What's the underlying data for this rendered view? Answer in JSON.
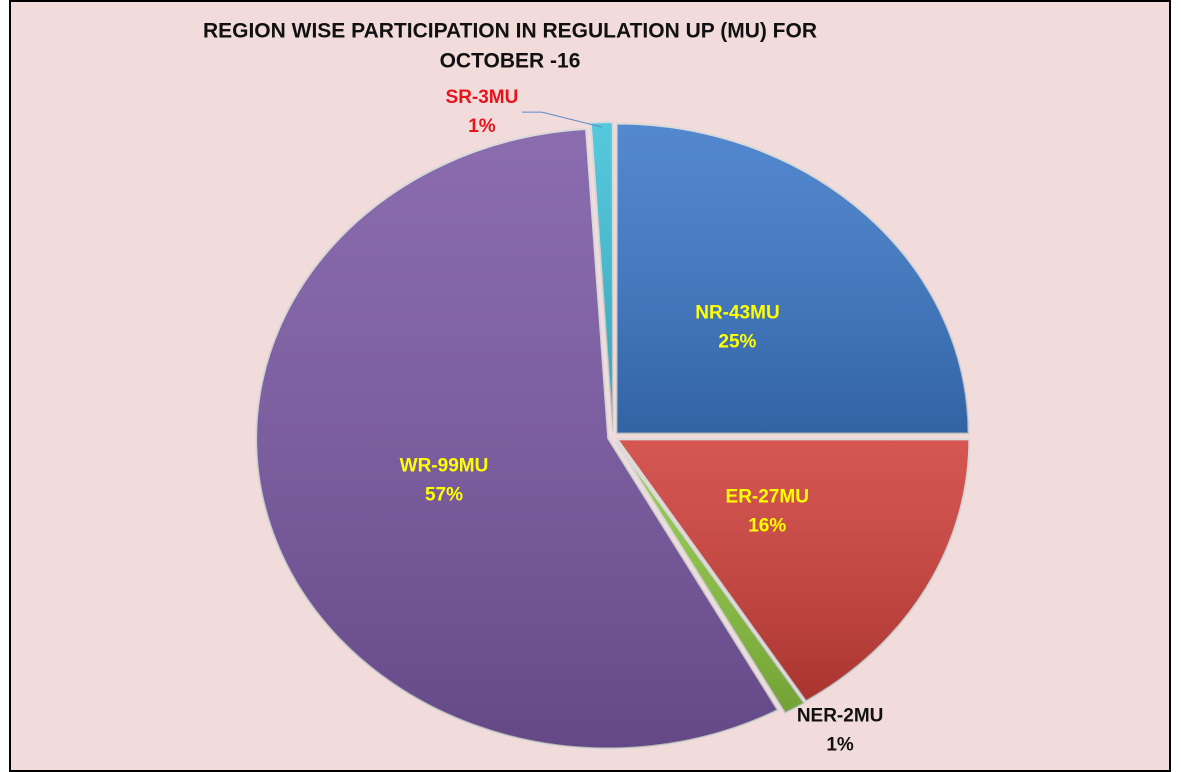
{
  "chart_data": {
    "type": "pie",
    "title": [
      "REGION WISE PARTICIPATION IN REGULATION UP (MU) FOR",
      "OCTOBER -16"
    ],
    "categories": [
      "NR-43MU",
      "ER-27MU",
      "NER-2MU",
      "WR-99MU",
      "SR-3MU"
    ],
    "values": [
      25,
      16,
      1,
      57,
      1
    ],
    "value_labels": [
      "25%",
      "16%",
      "1%",
      "57%",
      "1%"
    ],
    "colors": [
      "#3b78c8",
      "#cf3f3a",
      "#8cc63f",
      "#7a58a4",
      "#3ec1d8"
    ],
    "label_colors": [
      "#ffff00",
      "#ffff00",
      "#111111",
      "#ffff00",
      "#e8141b"
    ]
  }
}
